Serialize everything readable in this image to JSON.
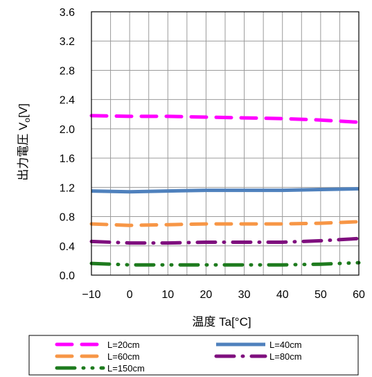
{
  "chart_data": {
    "type": "line",
    "title": "",
    "xlabel": "温度 Ta[°C]",
    "ylabel_main": "出力電圧 V",
    "ylabel_sub": "o",
    "ylabel_unit": "[V]",
    "xlim": [
      -10,
      60
    ],
    "ylim": [
      0.0,
      3.6
    ],
    "xticks": [
      -10,
      0,
      10,
      20,
      30,
      40,
      50,
      60
    ],
    "xtick_labels": [
      "−10",
      "0",
      "10",
      "20",
      "30",
      "40",
      "50",
      "60"
    ],
    "yticks": [
      0,
      0.4,
      0.8,
      1.2,
      1.6,
      2.0,
      2.4,
      2.8,
      3.2,
      3.6
    ],
    "ytick_labels": [
      "0.0",
      "0.4",
      "0.8",
      "1.2",
      "1.6",
      "2.0",
      "2.4",
      "2.8",
      "3.2",
      "3.6"
    ],
    "grid": true,
    "legend_position": "bottom",
    "x": [
      -10,
      0,
      10,
      20,
      30,
      40,
      50,
      60
    ],
    "series": [
      {
        "name": "L=20cm",
        "color": "#ff00ff",
        "style": "dash",
        "values": [
          2.18,
          2.17,
          2.17,
          2.16,
          2.15,
          2.14,
          2.12,
          2.09
        ]
      },
      {
        "name": "L=40cm",
        "color": "#4f81bd",
        "style": "solid",
        "values": [
          1.15,
          1.14,
          1.15,
          1.16,
          1.16,
          1.16,
          1.17,
          1.18
        ]
      },
      {
        "name": "L=60cm",
        "color": "#f79646",
        "style": "dash",
        "values": [
          0.7,
          0.68,
          0.69,
          0.7,
          0.7,
          0.7,
          0.71,
          0.73
        ]
      },
      {
        "name": "L=80cm",
        "color": "#7f0f7e",
        "style": "dashdot",
        "values": [
          0.46,
          0.44,
          0.44,
          0.45,
          0.45,
          0.45,
          0.47,
          0.5
        ]
      },
      {
        "name": "L=150cm",
        "color": "#1e7b1e",
        "style": "dashdotdot",
        "values": [
          0.16,
          0.14,
          0.14,
          0.14,
          0.14,
          0.14,
          0.15,
          0.17
        ]
      }
    ]
  }
}
